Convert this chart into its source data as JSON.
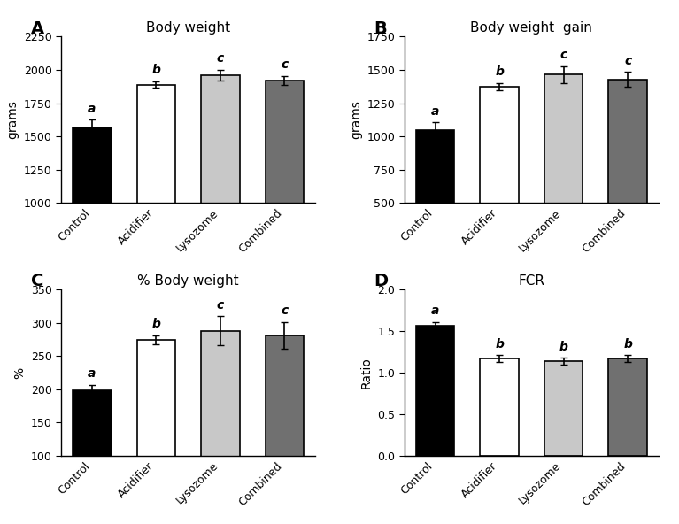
{
  "panels": [
    {
      "label": "A",
      "title": "Body weight",
      "ylabel": "grams",
      "categories": [
        "Control",
        "Acidifier",
        "Lysozome",
        "Combined"
      ],
      "values": [
        1570,
        1890,
        1960,
        1920
      ],
      "errors": [
        55,
        25,
        40,
        35
      ],
      "sig_labels": [
        "a",
        "b",
        "c",
        "c"
      ],
      "bar_colors": [
        "#000000",
        "#ffffff",
        "#c8c8c8",
        "#707070"
      ],
      "bar_edgecolors": [
        "#000000",
        "#000000",
        "#000000",
        "#000000"
      ],
      "ylim": [
        1000,
        2250
      ],
      "yticks": [
        1000,
        1250,
        1500,
        1750,
        2000,
        2250
      ]
    },
    {
      "label": "B",
      "title": "Body weight  gain",
      "ylabel": "grams",
      "categories": [
        "Control",
        "Acidifier",
        "Lysozome",
        "Combined"
      ],
      "values": [
        1045,
        1375,
        1465,
        1430
      ],
      "errors": [
        60,
        25,
        65,
        55
      ],
      "sig_labels": [
        "a",
        "b",
        "c",
        "c"
      ],
      "bar_colors": [
        "#000000",
        "#ffffff",
        "#c8c8c8",
        "#707070"
      ],
      "bar_edgecolors": [
        "#000000",
        "#000000",
        "#000000",
        "#000000"
      ],
      "ylim": [
        500,
        1750
      ],
      "yticks": [
        500,
        750,
        1000,
        1250,
        1500,
        1750
      ]
    },
    {
      "label": "C",
      "title": "% Body weight",
      "ylabel": "%",
      "categories": [
        "Control",
        "Acidifier",
        "Lysozome",
        "Combined"
      ],
      "values": [
        199,
        274,
        288,
        281
      ],
      "errors": [
        8,
        7,
        22,
        20
      ],
      "sig_labels": [
        "a",
        "b",
        "c",
        "c"
      ],
      "bar_colors": [
        "#000000",
        "#ffffff",
        "#c8c8c8",
        "#707070"
      ],
      "bar_edgecolors": [
        "#000000",
        "#000000",
        "#000000",
        "#000000"
      ],
      "ylim": [
        100,
        350
      ],
      "yticks": [
        100,
        150,
        200,
        250,
        300,
        350
      ]
    },
    {
      "label": "D",
      "title": "FCR",
      "ylabel": "Ratio",
      "categories": [
        "Control",
        "Acidifier",
        "Lysozome",
        "Combined"
      ],
      "values": [
        1.56,
        1.17,
        1.14,
        1.17
      ],
      "errors": [
        0.05,
        0.04,
        0.04,
        0.04
      ],
      "sig_labels": [
        "a",
        "b",
        "b",
        "b"
      ],
      "bar_colors": [
        "#000000",
        "#ffffff",
        "#c8c8c8",
        "#707070"
      ],
      "bar_edgecolors": [
        "#000000",
        "#000000",
        "#000000",
        "#000000"
      ],
      "ylim": [
        0.0,
        2.0
      ],
      "yticks": [
        0.0,
        0.5,
        1.0,
        1.5,
        2.0
      ]
    }
  ],
  "background_color": "#ffffff",
  "label_fontsize": 14,
  "title_fontsize": 11,
  "tick_fontsize": 9,
  "axis_label_fontsize": 10,
  "sig_fontsize": 10,
  "xticklabel_rotation": 45
}
